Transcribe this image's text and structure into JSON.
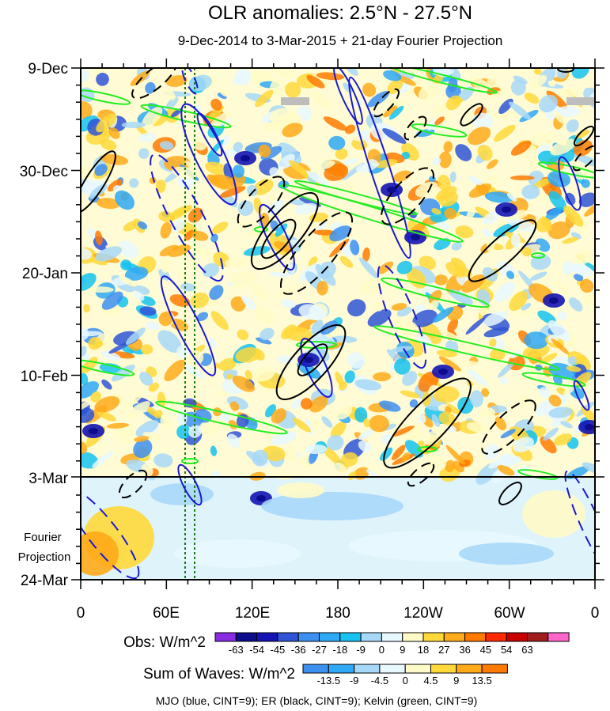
{
  "chart_data": {
    "type": "heatmap",
    "title": "OLR anomalies: 2.5°N - 27.5°N",
    "subtitle": "9-Dec-2014 to 3-Mar-2015 + 21-day Fourier Projection",
    "x_axis": {
      "ticks": [
        "0",
        "60E",
        "120E",
        "180",
        "120W",
        "60W",
        "0"
      ],
      "range_deg": [
        0,
        360
      ]
    },
    "y_axis": {
      "ticks": [
        "9-Dec",
        "30-Dec",
        "20-Jan",
        "10-Feb",
        "3-Mar",
        "24-Mar"
      ],
      "range": [
        "9-Dec-2014",
        "24-Mar-2015"
      ],
      "projection_label": "Fourier Projection",
      "observation_end": "3-Mar"
    },
    "obs_colorbar": {
      "label": "Obs: W/m^2",
      "levels": [
        "-63",
        "-54",
        "-45",
        "-36",
        "-27",
        "-18",
        "-9",
        "0",
        "9",
        "18",
        "27",
        "36",
        "45",
        "54",
        "63"
      ],
      "colors": [
        "#8a2be2",
        "#0c0c8c",
        "#1414b4",
        "#2f55d6",
        "#3d8ff0",
        "#2fa8f5",
        "#15c2f0",
        "#a8d8f8",
        "#e8f8ff",
        "#fffbc8",
        "#ffd83a",
        "#ffaa1a",
        "#ff7b00",
        "#ff2a00",
        "#c80000",
        "#a01e1e",
        "#ff66cc"
      ]
    },
    "waves_colorbar": {
      "label": "Sum of Waves: W/m^2",
      "levels": [
        "-13.5",
        "-9",
        "-4.5",
        "0",
        "4.5",
        "9",
        "13.5"
      ],
      "colors": [
        "#3d8ff0",
        "#2fa8f5",
        "#a8d8f8",
        "#e8f8ff",
        "#fffbc8",
        "#ffd83a",
        "#ffaa1a",
        "#ff7b00"
      ]
    },
    "legend_note": "MJO (blue, CINT=9); ER (black, CINT=9); Kelvin (green, CINT=9)",
    "wave_colors": {
      "MJO": "#1a1ad2",
      "ER": "#000000",
      "Kelvin": "#22ee22"
    },
    "grid": false,
    "reference_lines_lon_deg": [
      75,
      80
    ]
  }
}
